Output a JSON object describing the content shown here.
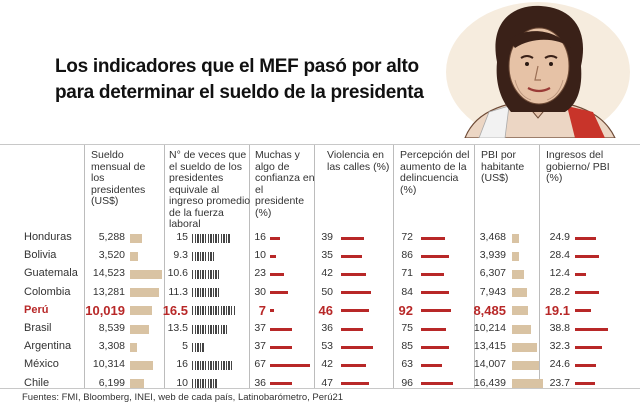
{
  "title": {
    "line1": "Los indicadores que el MEF pasó por alto",
    "line2": "para determinar el sueldo de la presidenta"
  },
  "headers": [
    "Sueldo mensual de los presidentes (US$)",
    "N° de veces que el sueldo de los presidentes equivale al ingreso promedio de la fuerza laboral",
    "Muchas y algo de confianza en el presidente (%)",
    "Violencia en las calles (%)",
    "Percepción del aumento de la delincuencia (%)",
    "PBI por habitante (US$)",
    "Ingresos del gobierno/ PBI (%)"
  ],
  "rows": [
    {
      "country": "Honduras",
      "sueldo": "5,288",
      "veces": "15",
      "confianza": "16",
      "violencia": "39",
      "delincuencia": "72",
      "pbi": "3,468",
      "ingresos": "24.9",
      "highlight": false
    },
    {
      "country": "Bolivia",
      "sueldo": "3,520",
      "veces": "9.3",
      "confianza": "10",
      "violencia": "35",
      "delincuencia": "86",
      "pbi": "3,939",
      "ingresos": "28.4",
      "highlight": false
    },
    {
      "country": "Guatemala",
      "sueldo": "14,523",
      "veces": "10.6",
      "confianza": "23",
      "violencia": "42",
      "delincuencia": "71",
      "pbi": "6,307",
      "ingresos": "12.4",
      "highlight": false
    },
    {
      "country": "Colombia",
      "sueldo": "13,281",
      "veces": "11.3",
      "confianza": "30",
      "violencia": "50",
      "delincuencia": "84",
      "pbi": "7,943",
      "ingresos": "28.2",
      "highlight": false
    },
    {
      "country": "Perú",
      "sueldo": "10,019",
      "veces": "16.5",
      "confianza": "7",
      "violencia": "46",
      "delincuencia": "92",
      "pbi": "8,485",
      "ingresos": "19.1",
      "highlight": true
    },
    {
      "country": "Brasil",
      "sueldo": "8,539",
      "veces": "13.5",
      "confianza": "37",
      "violencia": "36",
      "delincuencia": "75",
      "pbi": "10,214",
      "ingresos": "38.8",
      "highlight": false
    },
    {
      "country": "Argentina",
      "sueldo": "3,308",
      "veces": "5",
      "confianza": "37",
      "violencia": "53",
      "delincuencia": "85",
      "pbi": "13,415",
      "ingresos": "32.3",
      "highlight": false
    },
    {
      "country": "México",
      "sueldo": "10,314",
      "veces": "16",
      "confianza": "67",
      "violencia": "42",
      "delincuencia": "63",
      "pbi": "14,007",
      "ingresos": "24.6",
      "highlight": false
    },
    {
      "country": "Chile",
      "sueldo": "6,199",
      "veces": "10",
      "confianza": "36",
      "violencia": "47",
      "delincuencia": "96",
      "pbi": "16,439",
      "ingresos": "23.7",
      "highlight": false
    }
  ],
  "source": "Fuentes: FMI, Bloomberg, INEI, web de cada país, Latinobarómetro, Perú21",
  "colors": {
    "accent": "#b82828",
    "tan": "#d9c3a3",
    "text": "#333333"
  },
  "portrait_icon": "president-portrait-illustration"
}
